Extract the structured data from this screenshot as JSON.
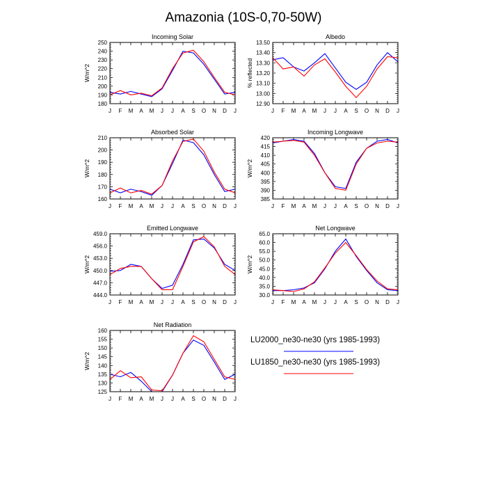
{
  "title": "Amazonia (10S-0,70-50W)",
  "months": [
    "J",
    "F",
    "M",
    "A",
    "M",
    "J",
    "J",
    "A",
    "S",
    "O",
    "N",
    "D",
    "J"
  ],
  "colors": {
    "lu2000": "#0000ff",
    "lu1850": "#ff0000"
  },
  "legend": [
    {
      "label": "LU2000_ne30-ne30 (yrs 1985-1993)",
      "color": "#0000ff"
    },
    {
      "label": "LU1850_ne30-ne30 (yrs 1985-1993)",
      "color": "#ff0000"
    }
  ],
  "chart_data": [
    {
      "type": "line",
      "title": "Incoming Solar",
      "ylabel": "W/m^2",
      "ylim": [
        180,
        250
      ],
      "yticks": [
        "180",
        "190",
        "200",
        "210",
        "220",
        "230",
        "240",
        "250"
      ],
      "x": [
        "J",
        "F",
        "M",
        "A",
        "M",
        "J",
        "J",
        "A",
        "S",
        "O",
        "N",
        "D",
        "J"
      ],
      "series": [
        {
          "name": "LU2000_ne30-ne30 (yrs 1985-1993)",
          "color": "#0000ff",
          "values": [
            193,
            191,
            194,
            191,
            188,
            197,
            218,
            240,
            238,
            225,
            208,
            191,
            193
          ]
        },
        {
          "name": "LU1850_ne30-ne30 (yrs 1985-1993)",
          "color": "#ff0000",
          "values": [
            190,
            195,
            190,
            192,
            189,
            198,
            220,
            238,
            241,
            228,
            210,
            193,
            190
          ]
        }
      ]
    },
    {
      "type": "line",
      "title": "Albedo",
      "ylabel": "% reflected",
      "ylim": [
        12.9,
        13.5
      ],
      "yticks": [
        "12.90",
        "13.00",
        "13.10",
        "13.20",
        "13.30",
        "13.40",
        "13.50"
      ],
      "x": [
        "J",
        "F",
        "M",
        "A",
        "M",
        "J",
        "J",
        "A",
        "S",
        "O",
        "N",
        "D",
        "J"
      ],
      "series": [
        {
          "name": "LU2000_ne30-ne30 (yrs 1985-1993)",
          "color": "#0000ff",
          "values": [
            13.33,
            13.35,
            13.26,
            13.22,
            13.3,
            13.39,
            13.25,
            13.11,
            13.04,
            13.11,
            13.28,
            13.4,
            13.31
          ]
        },
        {
          "name": "LU1850_ne30-ne30 (yrs 1985-1993)",
          "color": "#ff0000",
          "values": [
            13.35,
            13.24,
            13.26,
            13.17,
            13.28,
            13.34,
            13.21,
            13.07,
            12.96,
            13.07,
            13.24,
            13.36,
            13.35
          ]
        }
      ]
    },
    {
      "type": "line",
      "title": "Absorbed Solar",
      "ylabel": "W/m^2",
      "ylim": [
        160,
        210
      ],
      "yticks": [
        "160",
        "170",
        "180",
        "190",
        "200",
        "210"
      ],
      "x": [
        "J",
        "F",
        "M",
        "A",
        "M",
        "J",
        "J",
        "A",
        "S",
        "O",
        "N",
        "D",
        "J"
      ],
      "series": [
        {
          "name": "LU2000_ne30-ne30 (yrs 1985-1993)",
          "color": "#0000ff",
          "values": [
            168,
            165,
            168,
            166,
            163,
            171,
            189,
            208,
            206,
            196,
            180,
            166,
            168
          ]
        },
        {
          "name": "LU1850_ne30-ne30 (yrs 1985-1993)",
          "color": "#ff0000",
          "values": [
            165,
            169,
            165,
            167,
            164,
            171,
            191,
            207,
            209,
            199,
            182,
            168,
            165
          ]
        }
      ]
    },
    {
      "type": "line",
      "title": "Incoming Longwave",
      "ylabel": "W/m^2",
      "ylim": [
        385,
        420
      ],
      "yticks": [
        "385",
        "390",
        "395",
        "400",
        "405",
        "410",
        "415",
        "420"
      ],
      "x": [
        "J",
        "F",
        "M",
        "A",
        "M",
        "J",
        "J",
        "A",
        "S",
        "O",
        "N",
        "D",
        "J"
      ],
      "series": [
        {
          "name": "LU2000_ne30-ne30 (yrs 1985-1993)",
          "color": "#0000ff",
          "values": [
            417,
            418,
            419,
            418,
            411,
            400,
            392,
            391,
            406,
            414,
            418,
            419,
            417
          ]
        },
        {
          "name": "LU1850_ne30-ne30 (yrs 1985-1993)",
          "color": "#ff0000",
          "values": [
            417.5,
            418,
            418.5,
            417.5,
            410,
            400,
            391,
            390,
            405,
            414,
            417,
            418,
            417.5
          ]
        }
      ]
    },
    {
      "type": "line",
      "title": "Emitted Longwave",
      "ylabel": "W/m^2",
      "ylim": [
        444,
        459
      ],
      "yticks": [
        "444.0",
        "447.0",
        "450.0",
        "453.0",
        "456.0",
        "459.0"
      ],
      "x": [
        "J",
        "F",
        "M",
        "A",
        "M",
        "J",
        "J",
        "A",
        "S",
        "O",
        "N",
        "D",
        "J"
      ],
      "series": [
        {
          "name": "LU2000_ne30-ne30 (yrs 1985-1993)",
          "color": "#0000ff",
          "values": [
            449.8,
            450.0,
            451.5,
            451.0,
            448.0,
            445.6,
            446.4,
            451.5,
            457.5,
            457.7,
            455.5,
            451.5,
            450.0
          ]
        },
        {
          "name": "LU1850_ne30-ne30 (yrs 1985-1993)",
          "color": "#ff0000",
          "values": [
            449.0,
            450.5,
            451.0,
            451.0,
            448.0,
            445.3,
            445.3,
            451.0,
            457.0,
            458.3,
            455.8,
            451.0,
            449.0
          ]
        }
      ]
    },
    {
      "type": "line",
      "title": "Net Longwave",
      "ylabel": "W/m^2",
      "ylim": [
        30,
        65
      ],
      "yticks": [
        "30.0",
        "35.0",
        "40.0",
        "45.0",
        "50.0",
        "55.0",
        "60.0",
        "65.0"
      ],
      "x": [
        "J",
        "F",
        "M",
        "A",
        "M",
        "J",
        "J",
        "A",
        "S",
        "O",
        "N",
        "D",
        "J"
      ],
      "series": [
        {
          "name": "LU2000_ne30-ne30 (yrs 1985-1993)",
          "color": "#0000ff",
          "values": [
            32.5,
            32.5,
            33.0,
            34.0,
            37.0,
            45.0,
            55.0,
            62.0,
            52.0,
            44.0,
            37.0,
            33.0,
            32.5
          ]
        },
        {
          "name": "LU1850_ne30-ne30 (yrs 1985-1993)",
          "color": "#ff0000",
          "values": [
            33.0,
            32.5,
            32.0,
            33.5,
            37.5,
            45.5,
            54.0,
            60.0,
            52.5,
            44.5,
            38.0,
            33.5,
            33.0
          ]
        }
      ]
    },
    {
      "type": "line",
      "title": "Net Radiation",
      "ylabel": "W/m^2",
      "ylim": [
        125,
        160
      ],
      "yticks": [
        "125",
        "130",
        "135",
        "140",
        "145",
        "150",
        "155",
        "160"
      ],
      "x": [
        "J",
        "F",
        "M",
        "A",
        "M",
        "J",
        "J",
        "A",
        "S",
        "O",
        "N",
        "D",
        "J"
      ],
      "series": [
        {
          "name": "LU2000_ne30-ne30 (yrs 1985-1993)",
          "color": "#0000ff",
          "values": [
            135,
            133.5,
            136,
            131,
            125,
            125,
            134.5,
            147,
            154.5,
            151.5,
            142,
            132,
            135
          ]
        },
        {
          "name": "LU1850_ne30-ne30 (yrs 1985-1993)",
          "color": "#ff0000",
          "values": [
            132,
            137,
            133,
            133.5,
            126,
            125.5,
            134.5,
            147,
            157,
            153.5,
            143.5,
            133.5,
            132
          ]
        }
      ]
    }
  ]
}
